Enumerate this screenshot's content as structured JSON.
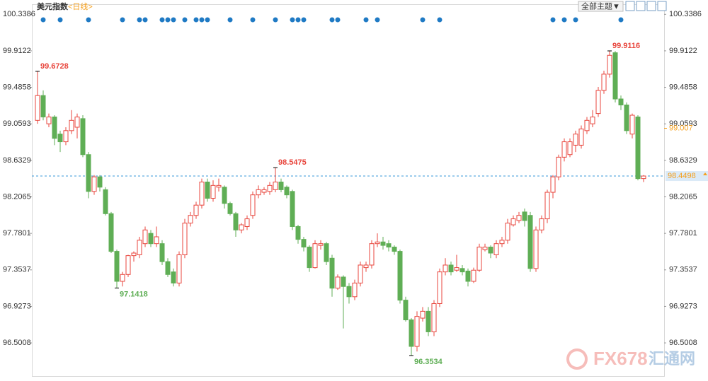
{
  "chart_data": {
    "type": "candlestick",
    "title": "美元指数",
    "subtitle": "<日线>",
    "toolbar_label": "全部主题▼",
    "watermark": [
      "FX678",
      "汇通网"
    ],
    "up_color": "#e8453c",
    "down_color": "#5fae55",
    "price_line_color": "#3a9ad9",
    "reference_color": "#f5a01e",
    "ylim": [
      96.13,
      100.44
    ],
    "yticks": [
      100.3386,
      99.9122,
      99.4858,
      99.0593,
      98.6329,
      98.2065,
      97.7801,
      97.3537,
      96.9273,
      96.5008
    ],
    "categories": [
      null,
      null,
      null,
      null,
      null,
      null,
      null,
      null,
      null,
      null,
      null,
      null,
      null,
      null,
      null,
      null,
      null,
      null,
      null,
      null,
      null,
      null,
      null,
      null,
      null,
      null,
      null,
      null,
      null,
      null,
      null,
      null,
      null,
      null,
      null,
      null,
      null,
      null,
      null,
      null,
      null,
      null,
      null,
      null,
      null,
      null,
      null,
      null,
      null,
      null,
      null,
      null,
      null,
      null,
      null,
      null,
      null,
      null,
      null,
      null,
      null,
      null,
      null,
      null,
      null,
      null,
      null,
      null,
      null,
      null,
      null,
      null,
      null,
      null,
      null,
      null,
      null,
      null,
      null,
      null,
      null,
      null,
      null,
      null,
      null,
      null,
      null,
      null,
      null,
      null,
      null,
      null,
      null,
      null,
      null,
      null,
      null,
      null,
      null,
      null,
      null,
      null,
      null,
      null,
      null,
      null,
      null,
      null
    ],
    "open": [
      99.1,
      99.39,
      99.06,
      99.14,
      98.94,
      98.85,
      98.98,
      99.02,
      99.12,
      98.7,
      98.27,
      98.44,
      98.29,
      98.01,
      97.57,
      97.22,
      97.3,
      97.52,
      97.53,
      97.66,
      97.78,
      97.66,
      97.66,
      97.45,
      97.33,
      97.2,
      97.53,
      97.9,
      97.99,
      98.11,
      98.38,
      98.19,
      98.32,
      98.32,
      98.13,
      98.01,
      97.82,
      97.86,
      97.99,
      98.23,
      98.26,
      98.27,
      98.29,
      98.38,
      98.32,
      98.27,
      97.86,
      97.71,
      97.62,
      97.38,
      97.64,
      97.66,
      97.49,
      97.14,
      97.27,
      97.16,
      97.04,
      97.2,
      97.38,
      97.41,
      97.66,
      97.68,
      97.66,
      97.62,
      97.57,
      97.0,
      96.77,
      96.46,
      96.79,
      96.87,
      96.63,
      96.96,
      97.33,
      97.41,
      97.35,
      97.37,
      97.34,
      97.22,
      97.35,
      97.59,
      97.62,
      97.53,
      97.66,
      97.7,
      97.88,
      97.93,
      98.03,
      97.99,
      97.37,
      97.82,
      97.95,
      98.26,
      98.44,
      98.67,
      98.7,
      98.81,
      98.81,
      98.98,
      99.06,
      99.18,
      99.45,
      99.64,
      99.89,
      99.35,
      99.28,
      98.94,
      99.14,
      98.42
    ],
    "high": [
      99.6728,
      99.45,
      99.18,
      99.16,
      98.98,
      99.02,
      99.22,
      99.18,
      99.16,
      98.73,
      98.46,
      98.46,
      98.32,
      98.03,
      97.59,
      97.33,
      97.53,
      97.57,
      97.74,
      97.86,
      97.82,
      97.86,
      97.7,
      97.49,
      97.37,
      97.57,
      97.95,
      98.03,
      98.15,
      98.42,
      98.42,
      98.4,
      98.42,
      98.34,
      98.15,
      98.03,
      97.9,
      97.99,
      98.27,
      98.34,
      98.32,
      98.38,
      98.5475,
      98.42,
      98.34,
      98.29,
      97.88,
      97.74,
      97.64,
      97.7,
      97.7,
      97.68,
      97.53,
      97.3,
      97.29,
      97.2,
      97.24,
      97.45,
      97.45,
      97.7,
      97.78,
      97.74,
      97.7,
      97.64,
      97.59,
      97.04,
      96.79,
      96.87,
      96.92,
      96.92,
      97.0,
      97.37,
      97.49,
      97.45,
      97.53,
      97.41,
      97.37,
      97.38,
      97.66,
      97.66,
      97.64,
      97.7,
      97.74,
      97.95,
      97.99,
      98.03,
      98.07,
      98.03,
      97.86,
      97.99,
      98.29,
      98.46,
      98.7,
      98.89,
      98.89,
      98.98,
      99.04,
      99.14,
      99.22,
      99.49,
      99.68,
      99.9116,
      99.91,
      99.39,
      99.31,
      99.18,
      99.16,
      98.46
    ],
    "low": [
      99.06,
      99.1,
      99.02,
      98.81,
      98.73,
      98.81,
      98.94,
      98.89,
      98.67,
      98.19,
      98.23,
      98.27,
      97.99,
      97.55,
      97.1418,
      97.16,
      97.27,
      97.45,
      97.49,
      97.62,
      97.62,
      97.62,
      97.41,
      97.27,
      97.16,
      97.16,
      97.49,
      97.86,
      97.95,
      98.07,
      98.15,
      98.15,
      98.27,
      98.07,
      97.99,
      97.74,
      97.78,
      97.82,
      97.95,
      98.19,
      98.23,
      98.23,
      98.26,
      98.26,
      98.19,
      97.82,
      97.66,
      97.57,
      97.33,
      97.37,
      97.59,
      97.41,
      97.04,
      97.12,
      96.67,
      96.96,
      97.0,
      97.16,
      97.33,
      97.37,
      97.62,
      97.59,
      97.57,
      97.53,
      96.96,
      96.75,
      96.3534,
      96.4,
      96.75,
      96.58,
      96.58,
      96.92,
      97.29,
      97.29,
      97.33,
      97.29,
      97.16,
      97.2,
      97.33,
      97.57,
      97.49,
      97.49,
      97.62,
      97.66,
      97.86,
      97.9,
      97.86,
      97.33,
      97.33,
      97.78,
      97.9,
      98.19,
      98.4,
      98.62,
      98.67,
      98.73,
      98.77,
      98.94,
      99.02,
      99.14,
      99.41,
      99.6,
      99.31,
      99.22,
      98.94,
      98.89,
      98.4,
      98.38
    ],
    "close": [
      99.39,
      99.14,
      99.14,
      98.89,
      98.85,
      98.98,
      99.1,
      99.14,
      98.7,
      98.27,
      98.44,
      98.32,
      98.01,
      97.57,
      97.22,
      97.3,
      97.52,
      97.55,
      97.7,
      97.82,
      97.66,
      97.74,
      97.45,
      97.3,
      97.2,
      97.53,
      97.9,
      97.99,
      98.11,
      98.38,
      98.19,
      98.34,
      98.34,
      98.13,
      98.01,
      97.82,
      97.88,
      97.95,
      98.23,
      98.29,
      98.29,
      98.34,
      98.38,
      98.29,
      98.23,
      97.86,
      97.71,
      97.62,
      97.38,
      97.66,
      97.66,
      97.45,
      97.14,
      97.27,
      97.16,
      97.04,
      97.2,
      97.41,
      97.41,
      97.66,
      97.68,
      97.64,
      97.62,
      97.57,
      97.0,
      96.77,
      96.46,
      96.81,
      96.87,
      96.63,
      96.96,
      97.33,
      97.41,
      97.33,
      97.38,
      97.33,
      97.22,
      97.35,
      97.62,
      97.62,
      97.55,
      97.66,
      97.7,
      97.9,
      97.95,
      97.99,
      97.93,
      97.37,
      97.82,
      97.95,
      98.26,
      98.44,
      98.67,
      98.85,
      98.85,
      98.94,
      99.0,
      99.1,
      99.14,
      99.45,
      99.64,
      99.86,
      99.35,
      99.28,
      98.98,
      99.16,
      98.42,
      98.4498
    ],
    "high_labels": [
      99.6728,
      98.5475,
      99.9116
    ],
    "low_labels": [
      97.1418,
      96.3534
    ],
    "last_price": 98.4498,
    "reference_price": 99.007
  }
}
